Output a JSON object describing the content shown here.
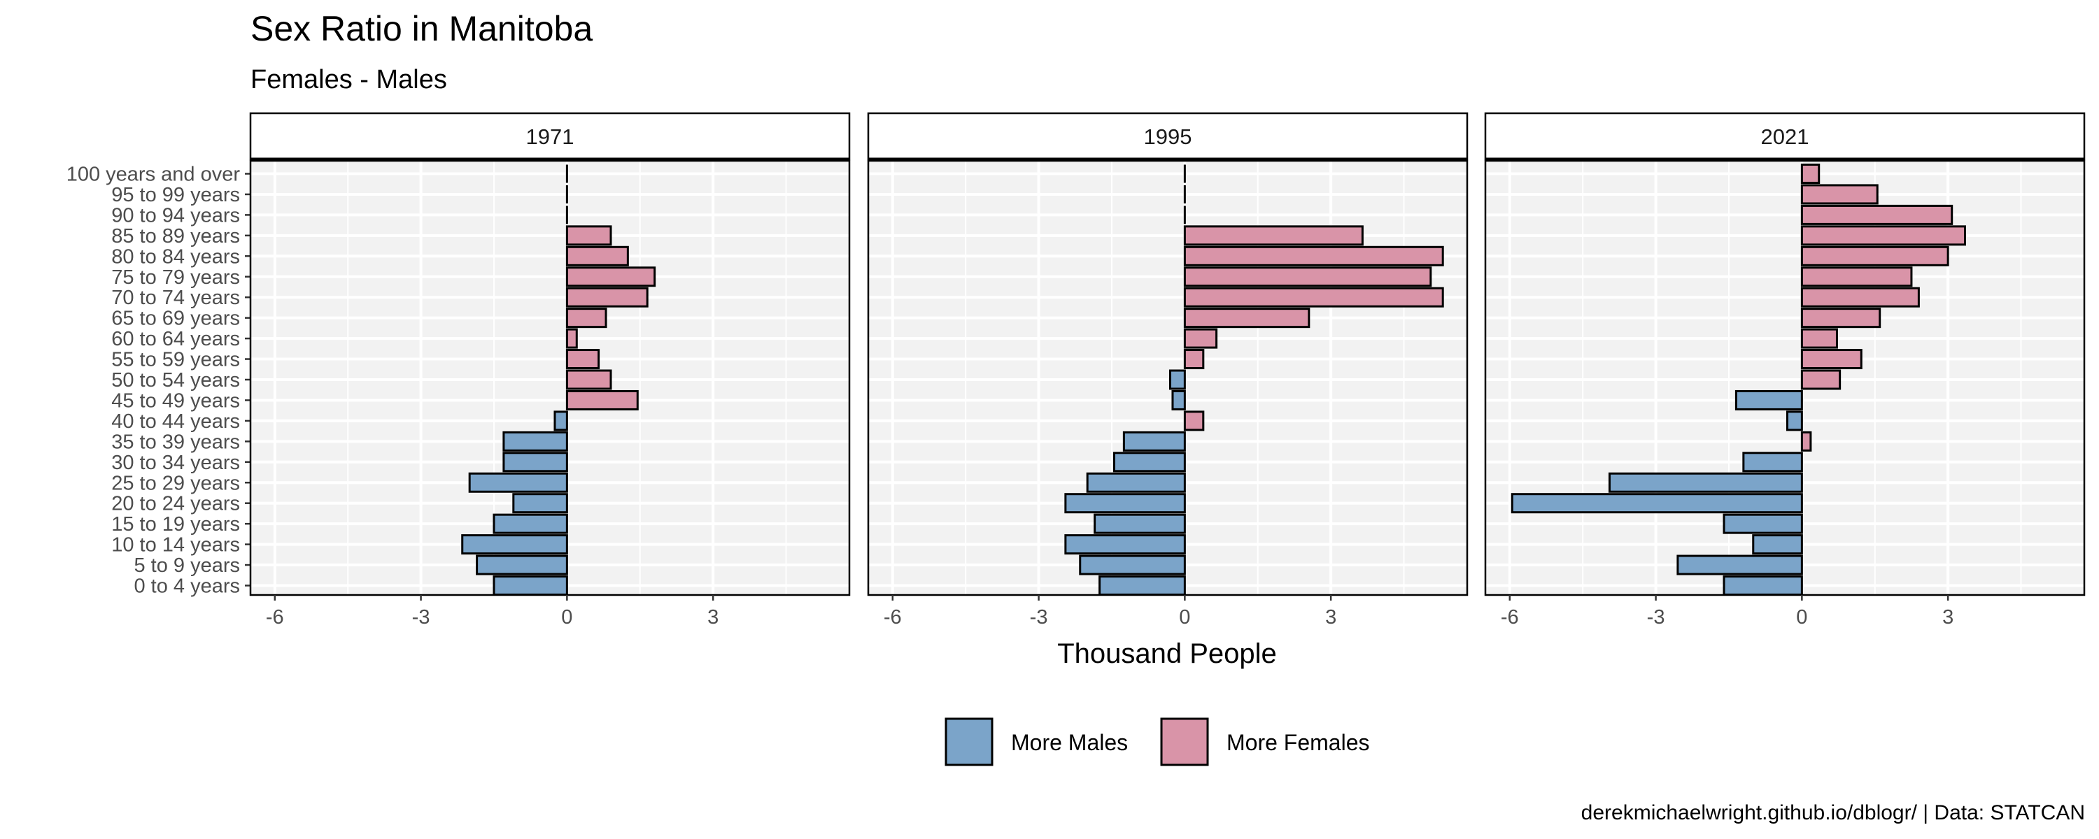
{
  "chart_data": {
    "type": "bar",
    "orientation": "horizontal",
    "title": "Sex Ratio in Manitoba",
    "subtitle": "Females - Males",
    "xlabel": "Thousand People",
    "caption": "derekmichaelwright.github.io/dblogr/ | Data: STATCAN",
    "xlim": [
      -6.5,
      5.8
    ],
    "xticks": [
      -6,
      -3,
      0,
      3
    ],
    "xtick_labels": [
      "-6",
      "-3",
      "0",
      "3"
    ],
    "grid": true,
    "legend_position": "bottom",
    "legend": [
      {
        "label": "More Males",
        "color": "#7ba4c9"
      },
      {
        "label": "More Females",
        "color": "#d994a8"
      }
    ],
    "categories": [
      "0 to 4 years",
      "5 to 9 years",
      "10 to 14 years",
      "15 to 19 years",
      "20 to 24 years",
      "25 to 29 years",
      "30 to 34 years",
      "35 to 39 years",
      "40 to 44 years",
      "45 to 49 years",
      "50 to 54 years",
      "55 to 59 years",
      "60 to 64 years",
      "65 to 69 years",
      "70 to 74 years",
      "75 to 79 years",
      "80 to 84 years",
      "85 to 89 years",
      "90 to 94 years",
      "95 to 99 years",
      "100 years and over"
    ],
    "facets": [
      {
        "name": "1971",
        "values": [
          -1.5,
          -1.85,
          -2.15,
          -1.5,
          -1.1,
          -2.0,
          -1.3,
          -1.3,
          -0.25,
          1.45,
          0.9,
          0.65,
          0.2,
          0.8,
          1.65,
          1.8,
          1.25,
          0.9,
          0.0,
          0.0,
          0.0
        ]
      },
      {
        "name": "1995",
        "values": [
          -1.75,
          -2.15,
          -2.45,
          -1.85,
          -2.45,
          -2.0,
          -1.45,
          -1.25,
          0.38,
          -0.25,
          -0.3,
          0.38,
          0.65,
          2.55,
          5.3,
          5.05,
          5.3,
          3.65,
          0.0,
          0.0,
          0.0
        ]
      },
      {
        "name": "2021",
        "values": [
          -1.6,
          -2.55,
          -1.0,
          -1.6,
          -5.95,
          -3.95,
          -1.2,
          0.18,
          -0.3,
          -1.35,
          0.78,
          1.22,
          0.72,
          1.6,
          2.4,
          2.25,
          3.0,
          3.35,
          3.08,
          1.55,
          0.35
        ]
      }
    ]
  }
}
